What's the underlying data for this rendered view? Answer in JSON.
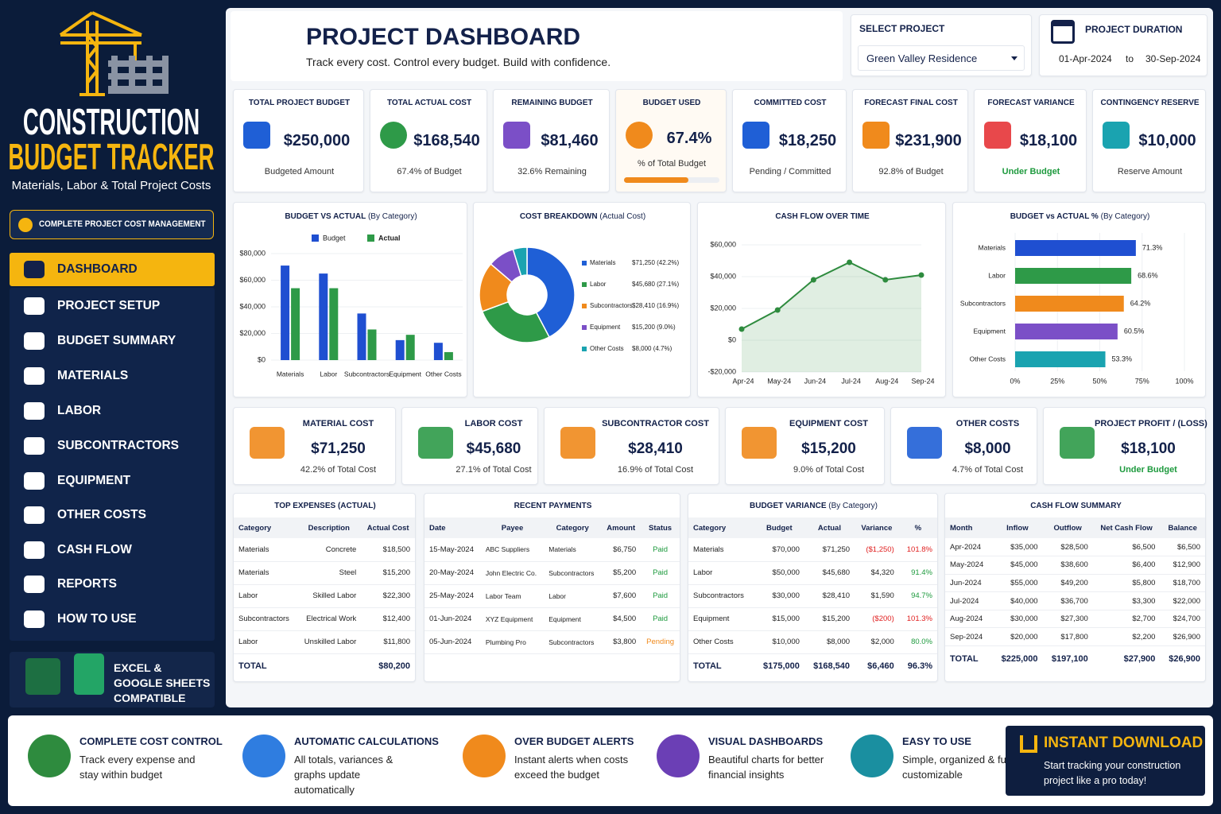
{
  "sidebar": {
    "title_line1": "CONSTRUCTION",
    "title_line2": "BUDGET TRACKER",
    "subtitle": "Materials, Labor & Total Project Costs",
    "badge": "COMPLETE PROJECT COST MANAGEMENT",
    "nav": [
      "DASHBOARD",
      "PROJECT SETUP",
      "BUDGET SUMMARY",
      "MATERIALS",
      "LABOR",
      "SUBCONTRACTORS",
      "EQUIPMENT",
      "OTHER COSTS",
      "CASH FLOW",
      "REPORTS",
      "HOW TO USE"
    ],
    "compat": [
      "EXCEL &",
      "GOOGLE SHEETS",
      "COMPATIBLE"
    ]
  },
  "header": {
    "title": "PROJECT DASHBOARD",
    "tagline": "Track every cost. Control every budget. Build with confidence.",
    "select_label": "SELECT PROJECT",
    "project": "Green Valley Residence",
    "duration_label": "PROJECT DURATION",
    "start": "01-Apr-2024",
    "to": "to",
    "end": "30-Sep-2024"
  },
  "kpis": [
    {
      "label": "TOTAL PROJECT BUDGET",
      "value": "$250,000",
      "note": "Budgeted Amount"
    },
    {
      "label": "TOTAL ACTUAL COST",
      "value": "$168,540",
      "note": "67.4% of Budget"
    },
    {
      "label": "REMAINING BUDGET",
      "value": "$81,460",
      "note": "32.6% Remaining"
    },
    {
      "label": "BUDGET USED",
      "value": "67.4%",
      "note": "% of Total Budget"
    },
    {
      "label": "COMMITTED COST",
      "value": "$18,250",
      "note": "Pending / Committed"
    },
    {
      "label": "FORECAST FINAL COST",
      "value": "$231,900",
      "note": "92.8% of Budget"
    },
    {
      "label": "FORECAST VARIANCE",
      "value": "$18,100",
      "note": "Under Budget",
      "note_color": "#1e9a3e"
    },
    {
      "label": "CONTINGENCY RESERVE",
      "value": "$10,000",
      "note": "Reserve Amount"
    }
  ],
  "charts": [
    {
      "type": "bar",
      "title": "BUDGET VS ACTUAL",
      "title_suffix": "(By Category)",
      "categories": [
        "Materials",
        "Labor",
        "Subcontractors",
        "Equipment",
        "Other Costs"
      ],
      "series": [
        {
          "name": "Budget",
          "color": "#1f4fd1",
          "values": [
            71000,
            65000,
            35000,
            15000,
            13000
          ]
        },
        {
          "name": "Actual",
          "color": "#2e9a48",
          "values": [
            54000,
            54000,
            23000,
            19000,
            6000
          ]
        }
      ],
      "ylim": [
        0,
        80000
      ],
      "yticks": [
        {
          "value": 0,
          "label": "$0"
        },
        {
          "value": 20000,
          "label": "$20,000"
        },
        {
          "value": 40000,
          "label": "$40,000"
        },
        {
          "value": 60000,
          "label": "$60,000"
        },
        {
          "value": 80000,
          "label": "$80,000"
        }
      ]
    },
    {
      "type": "donut",
      "title": "COST BREAKDOWN",
      "title_suffix": "(Actual Cost)",
      "categories": [
        "Materials",
        "Labor",
        "Subcontractors",
        "Equipment",
        "Other Costs"
      ],
      "values": [
        71250,
        45680,
        28410,
        15200,
        8000
      ],
      "value_labels": [
        "$71,250 (42.2%)",
        "$45,680 (27.1%)",
        "$28,410 (16.9%)",
        "$15,200 (9.0%)",
        "$8,000 (4.7%)"
      ],
      "colors": [
        "#1f5fd6",
        "#2e9a48",
        "#f08a1c",
        "#7b4fc7",
        "#1aa3b0"
      ]
    },
    {
      "type": "line",
      "title": "CASH FLOW OVER TIME",
      "categories": [
        "Apr-24",
        "May-24",
        "Jun-24",
        "Jul-24",
        "Aug-24",
        "Sep-24"
      ],
      "values": [
        7000,
        19000,
        38000,
        49000,
        38000,
        41000
      ],
      "color": "#2e8b3e",
      "ylim": [
        -20000,
        60000
      ],
      "yticks": [
        {
          "value": -20000,
          "label": "-$20,000"
        },
        {
          "value": 0,
          "label": "$0"
        },
        {
          "value": 20000,
          "label": "$20,000"
        },
        {
          "value": 40000,
          "label": "$40,000"
        },
        {
          "value": 60000,
          "label": "$60,000"
        }
      ]
    },
    {
      "type": "hbar",
      "title": "BUDGET vs ACTUAL %",
      "title_suffix": "(By Category)",
      "categories": [
        "Materials",
        "Labor",
        "Subcontractors",
        "Equipment",
        "Other Costs"
      ],
      "values": [
        71.3,
        68.6,
        64.2,
        60.5,
        53.3
      ],
      "value_labels": [
        "71.3%",
        "68.6%",
        "64.2%",
        "60.5%",
        "53.3%"
      ],
      "colors": [
        "#1f4fd1",
        "#2e9a48",
        "#f08a1c",
        "#7b4fc7",
        "#1aa3b0"
      ],
      "xlim": [
        0,
        100
      ],
      "xticks": [
        {
          "value": 0,
          "label": "0%"
        },
        {
          "value": 25,
          "label": "25%"
        },
        {
          "value": 50,
          "label": "50%"
        },
        {
          "value": 75,
          "label": "75%"
        },
        {
          "value": 100,
          "label": "100%"
        }
      ]
    }
  ],
  "cost_cards": [
    {
      "label": "MATERIAL COST",
      "value": "$71,250",
      "note": "42.2% of Total Cost"
    },
    {
      "label": "LABOR COST",
      "value": "$45,680",
      "note": "27.1% of Total Cost"
    },
    {
      "label": "SUBCONTRACTOR COST",
      "value": "$28,410",
      "note": "16.9% of Total Cost"
    },
    {
      "label": "EQUIPMENT COST",
      "value": "$15,200",
      "note": "9.0% of Total Cost"
    },
    {
      "label": "OTHER COSTS",
      "value": "$8,000",
      "note": "4.7% of Total Cost"
    },
    {
      "label": "PROJECT PROFIT / (LOSS)",
      "value": "$18,100",
      "note": "Under Budget",
      "note_color": "#1e9a3e"
    }
  ],
  "tables": [
    {
      "title": "TOP EXPENSES (ACTUAL)",
      "headers": [
        "Category",
        "Description",
        "Actual Cost"
      ],
      "rows": [
        [
          "Materials",
          "Concrete",
          "$18,500"
        ],
        [
          "Materials",
          "Steel",
          "$15,200"
        ],
        [
          "Labor",
          "Skilled Labor",
          "$22,300"
        ],
        [
          "Subcontractors",
          "Electrical Work",
          "$12,400"
        ],
        [
          "Labor",
          "Unskilled Labor",
          "$11,800"
        ]
      ],
      "total": [
        "TOTAL",
        "$80,200"
      ]
    },
    {
      "title": "RECENT PAYMENTS",
      "headers": [
        "Date",
        "Payee",
        "Category",
        "Amount",
        "Status"
      ],
      "rows": [
        [
          "15-May-2024",
          "ABC Suppliers",
          "Materials",
          "$6,750",
          "Paid"
        ],
        [
          "20-May-2024",
          "John Electric Co.",
          "Subcontractors",
          "$5,200",
          "Paid"
        ],
        [
          "25-May-2024",
          "Labor Team",
          "Labor",
          "$7,600",
          "Paid"
        ],
        [
          "01-Jun-2024",
          "XYZ Equipment",
          "Equipment",
          "$4,500",
          "Paid"
        ],
        [
          "05-Jun-2024",
          "Plumbing Pro",
          "Subcontractors",
          "$3,800",
          "Pending"
        ]
      ],
      "status_colors": [
        "#1e9a3e",
        "#1e9a3e",
        "#1e9a3e",
        "#1e9a3e",
        "#f08a1c"
      ]
    },
    {
      "title": "BUDGET VARIANCE",
      "title_suffix": "(By Category)",
      "headers": [
        "Category",
        "Budget",
        "Actual",
        "Variance",
        "%"
      ],
      "rows": [
        [
          "Materials",
          "$70,000",
          "$71,250",
          "($1,250)",
          "101.8%"
        ],
        [
          "Labor",
          "$50,000",
          "$45,680",
          "$4,320",
          "91.4%"
        ],
        [
          "Subcontractors",
          "$30,000",
          "$28,410",
          "$1,590",
          "94.7%"
        ],
        [
          "Equipment",
          "$15,000",
          "$15,200",
          "($200)",
          "101.3%"
        ],
        [
          "Other Costs",
          "$10,000",
          "$8,000",
          "$2,000",
          "80.0%"
        ]
      ],
      "variance_colors": [
        "#e02020",
        "#222222",
        "#222222",
        "#e02020",
        "#222222"
      ],
      "pct_colors": [
        "#e02020",
        "#1e9a3e",
        "#1e9a3e",
        "#e02020",
        "#1e9a3e"
      ],
      "total": [
        "TOTAL",
        "$175,000",
        "$168,540",
        "$6,460",
        "96.3%"
      ]
    },
    {
      "title": "CASH FLOW SUMMARY",
      "headers": [
        "Month",
        "Inflow",
        "Outflow",
        "Net Cash Flow",
        "Balance"
      ],
      "rows": [
        [
          "Apr-2024",
          "$35,000",
          "$28,500",
          "$6,500",
          "$6,500"
        ],
        [
          "May-2024",
          "$45,000",
          "$38,600",
          "$6,400",
          "$12,900"
        ],
        [
          "Jun-2024",
          "$55,000",
          "$49,200",
          "$5,800",
          "$18,700"
        ],
        [
          "Jul-2024",
          "$40,000",
          "$36,700",
          "$3,300",
          "$22,000"
        ],
        [
          "Aug-2024",
          "$30,000",
          "$27,300",
          "$2,700",
          "$24,700"
        ],
        [
          "Sep-2024",
          "$20,000",
          "$17,800",
          "$2,200",
          "$26,900"
        ]
      ],
      "total": [
        "TOTAL",
        "$225,000",
        "$197,100",
        "$27,900",
        "$26,900"
      ]
    }
  ],
  "features": [
    {
      "title": "COMPLETE COST CONTROL",
      "text": "Track every expense and stay within budget"
    },
    {
      "title": "AUTOMATIC CALCULATIONS",
      "text": "All totals, variances & graphs update automatically"
    },
    {
      "title": "OVER BUDGET ALERTS",
      "text": "Instant alerts when costs exceed the budget"
    },
    {
      "title": "VISUAL DASHBOARDS",
      "text": "Beautiful charts for better financial insights"
    },
    {
      "title": "EASY TO USE",
      "text": "Simple, organized & fully customizable"
    }
  ],
  "cta": {
    "title": "INSTANT DOWNLOAD",
    "text": "Start tracking your construction project like a pro today!"
  }
}
